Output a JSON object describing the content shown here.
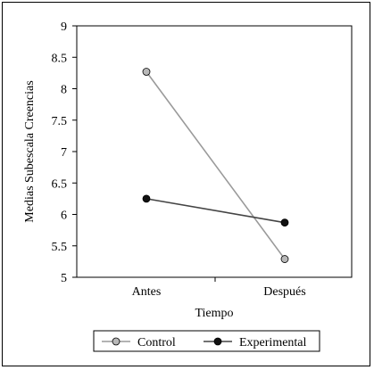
{
  "chart_data": {
    "type": "line",
    "title": "",
    "xlabel": "Tiempo",
    "ylabel": "Medias Subescala Creencias",
    "categories": [
      "Antes",
      "Después"
    ],
    "ylim": [
      5,
      9
    ],
    "yticks": [
      "5",
      "5.5",
      "6",
      "6.5",
      "7",
      "7.5",
      "8",
      "8.5",
      "9"
    ],
    "grid": false,
    "legend_position": "bottom",
    "series": [
      {
        "name": "Control",
        "values": [
          8.27,
          5.29
        ],
        "color": "#9a9a9a",
        "marker_fill": "#b8b8b8"
      },
      {
        "name": "Experimental",
        "values": [
          6.25,
          5.87
        ],
        "color": "#444444",
        "marker_fill": "#111111"
      }
    ]
  }
}
